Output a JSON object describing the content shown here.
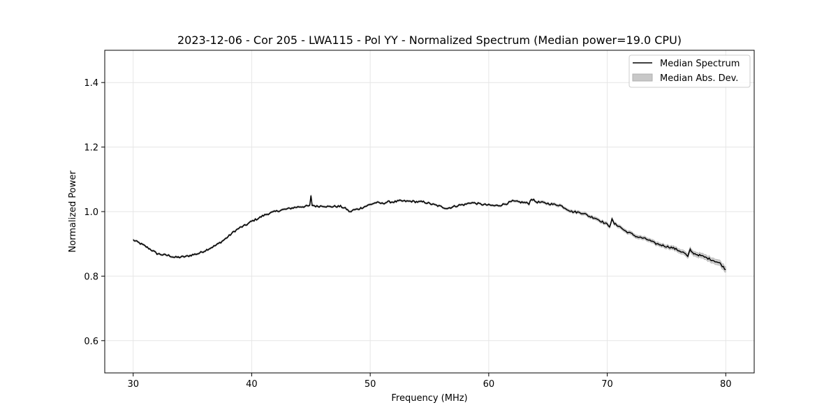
{
  "chart_data": {
    "type": "line",
    "title": "2023-12-06 - Cor 205 - LWA115 - Pol YY - Normalized Spectrum (Median power=19.0 CPU)",
    "xlabel": "Frequency (MHz)",
    "ylabel": "Normalized Power",
    "xlim": [
      27.6,
      82.4
    ],
    "ylim": [
      0.5,
      1.5
    ],
    "xticks": [
      30,
      40,
      50,
      60,
      70,
      80
    ],
    "yticks": [
      0.6,
      0.8,
      1.0,
      1.2,
      1.4
    ],
    "xtick_labels": [
      "30",
      "40",
      "50",
      "60",
      "70",
      "80"
    ],
    "ytick_labels": [
      "0.6",
      "0.8",
      "1.0",
      "1.2",
      "1.4"
    ],
    "grid": true,
    "legend_position": "top-right",
    "legend": [
      "Median Spectrum",
      "Median Abs. Dev."
    ],
    "series": [
      {
        "name": "Median Spectrum",
        "color": "#000000",
        "x": [
          30,
          30.5,
          31,
          31.5,
          32,
          32.5,
          33,
          33.5,
          34,
          34.5,
          35,
          35.5,
          36,
          36.5,
          37,
          37.5,
          38,
          38.5,
          39,
          39.5,
          40,
          40.5,
          41,
          41.5,
          42,
          42.5,
          43,
          43.5,
          44,
          44.5,
          44.9,
          45.0,
          45.1,
          45.5,
          46,
          46.5,
          47,
          47.5,
          48,
          48.3,
          48.5,
          49,
          49.5,
          50,
          50.5,
          51,
          51.5,
          52,
          52.5,
          53,
          53.5,
          54,
          54.5,
          55,
          55.5,
          56,
          56.5,
          57,
          57.5,
          58,
          58.5,
          59,
          59.5,
          60,
          60.5,
          61,
          61.5,
          62,
          62.5,
          63,
          63.4,
          63.6,
          64,
          64.5,
          65,
          65.5,
          66,
          66.5,
          67,
          67.5,
          68,
          68.5,
          69,
          69.5,
          70,
          70.2,
          70.4,
          70.6,
          71,
          71.5,
          72,
          72.5,
          73,
          73.5,
          74,
          74.5,
          75,
          75.5,
          76,
          76.5,
          76.8,
          77.0,
          77.2,
          77.5,
          78,
          78.5,
          79,
          79.5,
          80
        ],
        "values": [
          0.912,
          0.903,
          0.893,
          0.882,
          0.87,
          0.866,
          0.864,
          0.858,
          0.859,
          0.861,
          0.866,
          0.87,
          0.878,
          0.887,
          0.896,
          0.908,
          0.922,
          0.938,
          0.95,
          0.958,
          0.97,
          0.978,
          0.988,
          0.995,
          1.0,
          1.005,
          1.008,
          1.012,
          1.015,
          1.016,
          1.018,
          1.048,
          1.02,
          1.016,
          1.018,
          1.015,
          1.016,
          1.016,
          1.008,
          0.998,
          1.004,
          1.008,
          1.015,
          1.022,
          1.028,
          1.025,
          1.03,
          1.03,
          1.033,
          1.032,
          1.032,
          1.03,
          1.03,
          1.025,
          1.02,
          1.015,
          1.01,
          1.015,
          1.02,
          1.022,
          1.028,
          1.025,
          1.022,
          1.02,
          1.018,
          1.02,
          1.025,
          1.032,
          1.03,
          1.028,
          1.025,
          1.04,
          1.03,
          1.028,
          1.025,
          1.022,
          1.02,
          1.01,
          1.0,
          0.998,
          0.995,
          0.985,
          0.98,
          0.97,
          0.96,
          0.955,
          0.975,
          0.962,
          0.955,
          0.94,
          0.932,
          0.922,
          0.918,
          0.912,
          0.902,
          0.897,
          0.892,
          0.888,
          0.88,
          0.872,
          0.86,
          0.882,
          0.872,
          0.868,
          0.862,
          0.855,
          0.848,
          0.84,
          0.82
        ]
      },
      {
        "name": "Median Abs. Dev.",
        "color": "#c8c8c8",
        "x": [
          30,
          40,
          50,
          60,
          65,
          70,
          75,
          78,
          80
        ],
        "values": [
          0.003,
          0.003,
          0.003,
          0.003,
          0.004,
          0.005,
          0.006,
          0.008,
          0.009
        ]
      }
    ]
  }
}
